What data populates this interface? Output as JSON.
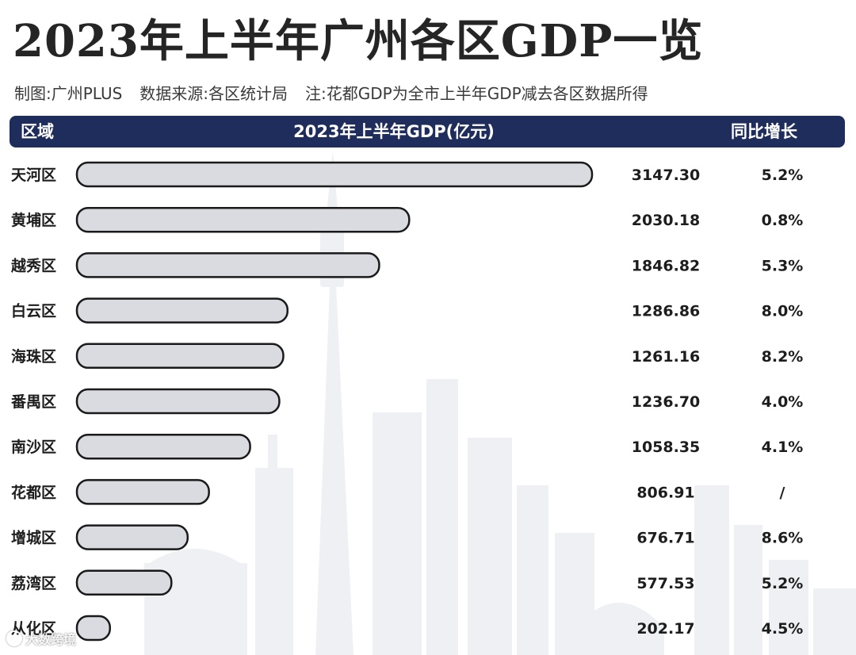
{
  "title": "2023年上半年广州各区GDP一览",
  "subtitle": {
    "author": "制图:广州PLUS",
    "source": "数据来源:各区统计局",
    "note": "注:花都GDP为全市上半年GDP减去各区数据所得"
  },
  "header": {
    "region_label": "区域",
    "gdp_label": "2023年上半年GDP(亿元)",
    "growth_label": "同比增长"
  },
  "colors": {
    "header_bg": "#1f2d5c",
    "bar_fill": "#d9dbe0",
    "bar_stroke": "#1a1a1a"
  },
  "chart_data": {
    "type": "bar",
    "orientation": "horizontal",
    "title": "2023年上半年广州各区GDP一览",
    "xlabel": "2023年上半年GDP(亿元)",
    "ylabel": "区域",
    "xlim": [
      0,
      3150
    ],
    "categories": [
      "天河区",
      "黄埔区",
      "越秀区",
      "白云区",
      "海珠区",
      "番禺区",
      "南沙区",
      "花都区",
      "增城区",
      "荔湾区",
      "从化区"
    ],
    "values": [
      3147.3,
      2030.18,
      1846.82,
      1286.86,
      1261.16,
      1236.7,
      1058.35,
      806.91,
      676.71,
      577.53,
      202.17
    ],
    "value_labels": [
      "3147.30",
      "2030.18",
      "1846.82",
      "1286.86",
      "1261.16",
      "1236.70",
      "1058.35",
      "806.91",
      "676.71",
      "577.53",
      "202.17"
    ],
    "growth": [
      "5.2%",
      "0.8%",
      "5.3%",
      "8.0%",
      "8.2%",
      "4.0%",
      "4.1%",
      "/",
      "8.6%",
      "5.2%",
      "4.5%"
    ]
  },
  "watermark": "大数跨境"
}
